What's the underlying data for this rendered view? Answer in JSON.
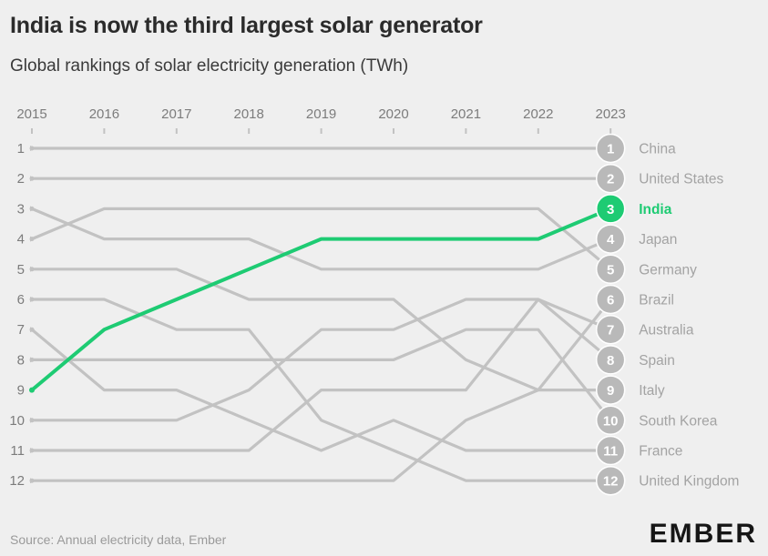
{
  "header": {
    "title": "India is now the third largest solar generator",
    "subtitle": "Global rankings of solar electricity generation (TWh)"
  },
  "footer": {
    "source": "Source: Annual electricity data, Ember",
    "brand": "EMBER"
  },
  "colors": {
    "background": "#efefef",
    "line_default": "#c2c2c2",
    "highlight": "#1ecb73",
    "circle_default": "#b9b9b9",
    "label_default": "#a3a3a3",
    "axis_text": "#7c7c7c"
  },
  "chart_data": {
    "type": "line",
    "subtype": "bump",
    "x": [
      "2015",
      "2016",
      "2017",
      "2018",
      "2019",
      "2020",
      "2021",
      "2022",
      "2023"
    ],
    "y_ticks": [
      "1",
      "2",
      "3",
      "4",
      "5",
      "6",
      "7",
      "8",
      "9",
      "10",
      "11",
      "12"
    ],
    "y_reversed": true,
    "highlight": "India",
    "series": [
      {
        "name": "China",
        "values": [
          1,
          1,
          1,
          1,
          1,
          1,
          1,
          1,
          1
        ]
      },
      {
        "name": "United States",
        "values": [
          2,
          2,
          2,
          2,
          2,
          2,
          2,
          2,
          2
        ]
      },
      {
        "name": "India",
        "values": [
          9,
          7,
          6,
          5,
          4,
          4,
          4,
          4,
          3
        ]
      },
      {
        "name": "Japan",
        "values": [
          3,
          4,
          4,
          4,
          5,
          5,
          5,
          5,
          4
        ]
      },
      {
        "name": "Germany",
        "values": [
          4,
          3,
          3,
          3,
          3,
          3,
          3,
          3,
          5
        ]
      },
      {
        "name": "Brazil",
        "values": [
          12,
          12,
          12,
          12,
          12,
          12,
          10,
          9,
          6
        ]
      },
      {
        "name": "Australia",
        "values": [
          11,
          11,
          11,
          11,
          9,
          9,
          9,
          6,
          7
        ]
      },
      {
        "name": "Spain",
        "values": [
          10,
          10,
          10,
          9,
          7,
          7,
          6,
          6,
          8
        ]
      },
      {
        "name": "Italy",
        "values": [
          5,
          5,
          5,
          6,
          6,
          6,
          8,
          9,
          9
        ]
      },
      {
        "name": "South Korea",
        "values": [
          8,
          8,
          8,
          8,
          8,
          8,
          7,
          7,
          10
        ]
      },
      {
        "name": "France",
        "values": [
          7,
          9,
          9,
          10,
          11,
          10,
          11,
          11,
          11
        ]
      },
      {
        "name": "United Kingdom",
        "values": [
          6,
          6,
          7,
          7,
          10,
          11,
          12,
          12,
          12
        ]
      }
    ],
    "end_labels": [
      {
        "rank": "1",
        "name": "China"
      },
      {
        "rank": "2",
        "name": "United States"
      },
      {
        "rank": "3",
        "name": "India"
      },
      {
        "rank": "4",
        "name": "Japan"
      },
      {
        "rank": "5",
        "name": "Germany"
      },
      {
        "rank": "6",
        "name": "Brazil"
      },
      {
        "rank": "7",
        "name": "Australia"
      },
      {
        "rank": "8",
        "name": "Spain"
      },
      {
        "rank": "9",
        "name": "Italy"
      },
      {
        "rank": "10",
        "name": "South Korea"
      },
      {
        "rank": "11",
        "name": "France"
      },
      {
        "rank": "12",
        "name": "United Kingdom"
      }
    ]
  }
}
